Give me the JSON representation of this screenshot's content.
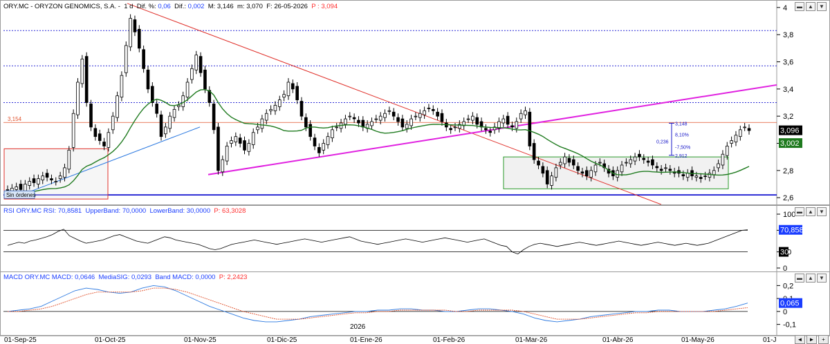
{
  "main_header": {
    "symbol": "ORY.MC - ORYZON GENOMICS, S.A.",
    "period": "1 d",
    "dif_pct_label": "Dif. %:",
    "dif_pct": "0,06",
    "dif_label": "Dif.:",
    "dif": "0,002",
    "max_label": "M:",
    "max": "3,146",
    "min_label": "m:",
    "min": "3,070",
    "date_label": "F:",
    "date": "26-05-2026",
    "price_label": "P :",
    "price": "3,094"
  },
  "rsi_header": {
    "name": "RSI ORY.MC RSI:",
    "rsi": "70,8581",
    "upper_label": "UpperBand:",
    "upper": "70,0000",
    "lower_label": "LowerBand:",
    "lower": "30,0000",
    "p_label": "P:",
    "p": "63,3028"
  },
  "macd_header": {
    "name": "MACD ORY.MC MACD:",
    "macd": "0,0646",
    "sig_label": "MediaSIG:",
    "sig": "0,0293",
    "band_label": "Band MACD:",
    "band": "0,0000",
    "p_label": "P:",
    "p": "2,2423"
  },
  "annotations": {
    "orange_level": "3,154",
    "sin_ordenes": "Sin órdenes",
    "fib_high": "3,148",
    "fib_pct_up": "8,10%",
    "fib_ratio": "0,236",
    "fib_pct_down": "-7,50%",
    "fib_low": "2,912",
    "last_price_tag": "3,096",
    "ma_tag": "3,002",
    "year_marker": "2026",
    "rsi_tag": "70,858",
    "rsi_tag_low": "30",
    "macd_tag": "0,065"
  },
  "colors": {
    "up_candle": "#ffffff",
    "down_candle": "#000000",
    "ma": "#1e7a1e",
    "red_trend": "#e0302a",
    "magenta_trend": "#e020e0",
    "blue_trend": "#2a78e0",
    "support": "#0000cc",
    "dotted": "#2a2ad6",
    "orange_level": "#e0502a",
    "fib": "#1414c8",
    "macd": "#2a78e0",
    "signal": "#e0502a"
  },
  "chart_data": [
    {
      "type": "candlestick",
      "title": "ORY.MC - ORYZON GENOMICS, S.A.",
      "x_ticks": [
        "01-Sep-25",
        "01-Oct-25",
        "01-Nov-25",
        "01-Dic-25",
        "01-Ene-26",
        "01-Feb-26",
        "01-Mar-26",
        "01-Abr-26",
        "01-May-26",
        "01-J"
      ],
      "y_ticks": [
        "4",
        "3,8",
        "3,6",
        "3,4",
        "3,2",
        "3",
        "2,8",
        "2,6"
      ],
      "ylim": [
        2.55,
        4.05
      ],
      "horizontal_levels": [
        3.83,
        3.57,
        3.3,
        3.154,
        2.62
      ],
      "close_series": [
        2.66,
        2.67,
        2.68,
        2.66,
        2.7,
        2.72,
        2.71,
        2.74,
        2.76,
        2.75,
        2.73,
        2.72,
        2.76,
        2.82,
        2.95,
        3.22,
        3.45,
        3.62,
        3.3,
        3.12,
        3.05,
        3.02,
        2.98,
        3.08,
        3.2,
        3.35,
        3.5,
        3.72,
        3.92,
        3.82,
        3.7,
        3.55,
        3.4,
        3.3,
        3.22,
        3.05,
        3.12,
        3.2,
        3.25,
        3.28,
        3.35,
        3.45,
        3.55,
        3.65,
        3.52,
        3.4,
        3.3,
        3.1,
        2.8,
        2.88,
        2.98,
        3.02,
        3.05,
        3.0,
        2.95,
        3.0,
        3.08,
        3.12,
        3.18,
        3.22,
        3.25,
        3.28,
        3.32,
        3.36,
        3.45,
        3.4,
        3.32,
        3.2,
        3.12,
        3.05,
        2.98,
        2.93,
        3.0,
        3.05,
        3.1,
        3.12,
        3.15,
        3.18,
        3.2,
        3.18,
        3.15,
        3.12,
        3.14,
        3.16,
        3.18,
        3.2,
        3.22,
        3.24,
        3.2,
        3.16,
        3.12,
        3.14,
        3.18,
        3.2,
        3.22,
        3.24,
        3.26,
        3.24,
        3.2,
        3.16,
        3.12,
        3.1,
        3.12,
        3.14,
        3.16,
        3.18,
        3.2,
        3.14,
        3.12,
        3.1,
        3.08,
        3.12,
        3.16,
        3.18,
        3.14,
        3.12,
        3.16,
        3.22,
        3.24,
        2.98,
        2.88,
        2.84,
        2.78,
        2.7,
        2.76,
        2.82,
        2.86,
        2.9,
        2.86,
        2.84,
        2.8,
        2.78,
        2.76,
        2.8,
        2.84,
        2.86,
        2.82,
        2.78,
        2.76,
        2.8,
        2.84,
        2.86,
        2.88,
        2.9,
        2.9,
        2.88,
        2.86,
        2.84,
        2.82,
        2.8,
        2.82,
        2.8,
        2.78,
        2.78,
        2.76,
        2.78,
        2.76,
        2.76,
        2.74,
        2.76,
        2.78,
        2.8,
        2.85,
        2.92,
        2.98,
        3.02,
        3.06,
        3.1,
        3.12,
        3.094
      ],
      "moving_average_last": 3.002,
      "last_price": 3.096
    },
    {
      "type": "line",
      "title": "RSI ORY.MC",
      "y_ticks": [
        "100",
        "70",
        "30",
        "0"
      ],
      "ylim": [
        0,
        100
      ],
      "bands": [
        70,
        30
      ],
      "values": [
        42,
        45,
        48,
        46,
        50,
        52,
        55,
        58,
        62,
        68,
        72,
        60,
        55,
        50,
        46,
        48,
        50,
        52,
        56,
        60,
        62,
        58,
        54,
        50,
        48,
        46,
        50,
        54,
        58,
        56,
        52,
        50,
        48,
        46,
        44,
        40,
        36,
        34,
        36,
        40,
        44,
        46,
        48,
        50,
        52,
        50,
        48,
        46,
        44,
        46,
        48,
        50,
        52,
        54,
        52,
        50,
        48,
        50,
        52,
        54,
        56,
        58,
        54,
        50,
        48,
        46,
        44,
        46,
        48,
        50,
        52,
        54,
        52,
        50,
        48,
        50,
        52,
        54,
        56,
        54,
        52,
        50,
        48,
        50,
        52,
        54,
        50,
        46,
        42,
        40,
        30,
        26,
        34,
        40,
        44,
        46,
        44,
        42,
        40,
        42,
        44,
        46,
        48,
        46,
        44,
        42,
        44,
        46,
        48,
        50,
        48,
        46,
        44,
        42,
        44,
        46,
        48,
        46,
        44,
        42,
        44,
        46,
        44,
        42,
        44,
        46,
        50,
        54,
        58,
        62,
        66,
        70,
        70.86
      ]
    },
    {
      "type": "line",
      "title": "MACD ORY.MC",
      "y_ticks": [
        "0,2",
        "0,1",
        "0",
        "-0,1"
      ],
      "ylim": [
        -0.15,
        0.25
      ],
      "series": [
        {
          "name": "MACD",
          "values": [
            0.0,
            0.01,
            0.02,
            0.04,
            0.08,
            0.12,
            0.16,
            0.18,
            0.17,
            0.15,
            0.14,
            0.15,
            0.18,
            0.2,
            0.19,
            0.16,
            0.12,
            0.08,
            0.04,
            0.01,
            -0.02,
            -0.05,
            -0.07,
            -0.08,
            -0.08,
            -0.07,
            -0.06,
            -0.04,
            -0.03,
            -0.02,
            -0.01,
            0.0,
            0.0,
            0.01,
            0.01,
            0.02,
            0.02,
            0.01,
            0.01,
            0.0,
            0.0,
            0.01,
            0.02,
            0.02,
            0.01,
            0.0,
            -0.02,
            -0.05,
            -0.07,
            -0.08,
            -0.07,
            -0.06,
            -0.04,
            -0.03,
            -0.02,
            -0.01,
            0.0,
            0.0,
            0.01,
            0.01,
            0.0,
            0.0,
            0.0,
            0.01,
            0.02,
            0.04,
            0.065
          ]
        },
        {
          "name": "MediaSIG",
          "values": [
            0.0,
            0.0,
            0.01,
            0.02,
            0.04,
            0.07,
            0.1,
            0.13,
            0.15,
            0.15,
            0.15,
            0.15,
            0.16,
            0.18,
            0.18,
            0.17,
            0.15,
            0.12,
            0.09,
            0.06,
            0.03,
            0.0,
            -0.02,
            -0.04,
            -0.06,
            -0.06,
            -0.06,
            -0.05,
            -0.04,
            -0.03,
            -0.02,
            -0.01,
            -0.01,
            0.0,
            0.0,
            0.01,
            0.01,
            0.01,
            0.01,
            0.01,
            0.0,
            0.0,
            0.01,
            0.01,
            0.01,
            0.01,
            0.0,
            -0.02,
            -0.04,
            -0.06,
            -0.06,
            -0.06,
            -0.05,
            -0.04,
            -0.03,
            -0.02,
            -0.01,
            -0.01,
            0.0,
            0.0,
            0.0,
            0.0,
            0.0,
            0.0,
            0.01,
            0.02,
            0.029
          ]
        }
      ]
    }
  ]
}
